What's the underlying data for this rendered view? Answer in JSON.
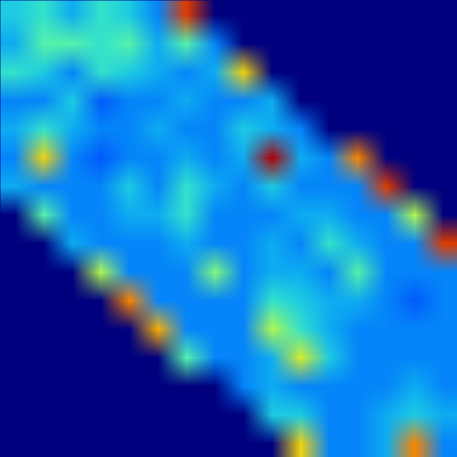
{
  "chart_data": {
    "type": "heatmap",
    "cells": [
      [
        0.4,
        0.45,
        0.35,
        0.45,
        0.4,
        0.3,
        0.9,
        0,
        0,
        0,
        0,
        0,
        0,
        0,
        0,
        0
      ],
      [
        0.35,
        0.5,
        0.5,
        0.45,
        0.5,
        0.35,
        0.5,
        0.3,
        0,
        0,
        0,
        0,
        0,
        0,
        0,
        0
      ],
      [
        0.45,
        0.4,
        0.3,
        0.45,
        0.4,
        0.35,
        0.3,
        0.35,
        0.7,
        0,
        0,
        0,
        0,
        0,
        0,
        0
      ],
      [
        0.3,
        0.3,
        0.4,
        0.25,
        0.3,
        0.3,
        0.35,
        0.3,
        0.3,
        0.35,
        0,
        0,
        0,
        0,
        0,
        0
      ],
      [
        0.35,
        0.45,
        0.35,
        0.3,
        0.3,
        0.35,
        0.3,
        0.3,
        0.4,
        0.35,
        0.3,
        0,
        0,
        0,
        0,
        0
      ],
      [
        0.3,
        0.7,
        0.3,
        0.25,
        0.3,
        0.3,
        0.35,
        0.3,
        0.35,
        1.0,
        0.35,
        0.3,
        0.8,
        0,
        0,
        0
      ],
      [
        0.35,
        0.3,
        0.3,
        0.3,
        0.4,
        0.3,
        0.45,
        0.35,
        0.3,
        0.4,
        0.3,
        0.3,
        0.3,
        0.9,
        0,
        0
      ],
      [
        0,
        0.5,
        0.3,
        0.3,
        0.35,
        0.35,
        0.45,
        0.3,
        0.3,
        0.3,
        0.35,
        0.35,
        0.3,
        0.3,
        0.6,
        0
      ],
      [
        0,
        0,
        0.35,
        0.3,
        0.3,
        0.3,
        0.35,
        0.3,
        0.3,
        0.35,
        0.3,
        0.45,
        0.35,
        0.3,
        0.3,
        0.9
      ],
      [
        0,
        0,
        0,
        0.6,
        0.3,
        0.3,
        0.3,
        0.55,
        0.3,
        0.35,
        0.35,
        0.3,
        0.5,
        0.3,
        0.3,
        0.3
      ],
      [
        0,
        0,
        0,
        0,
        0.8,
        0.3,
        0.3,
        0.3,
        0.3,
        0.45,
        0.4,
        0.35,
        0.35,
        0.3,
        0.25,
        0.3
      ],
      [
        0,
        0,
        0,
        0,
        0,
        0.75,
        0.3,
        0.3,
        0.3,
        0.6,
        0.45,
        0.35,
        0.3,
        0.3,
        0.3,
        0.3
      ],
      [
        0,
        0,
        0,
        0,
        0,
        0,
        0.5,
        0.3,
        0.3,
        0.35,
        0.65,
        0.4,
        0.3,
        0.3,
        0.3,
        0.3
      ],
      [
        0,
        0,
        0,
        0,
        0,
        0,
        0,
        0,
        0.3,
        0.35,
        0.3,
        0.3,
        0.3,
        0.3,
        0.35,
        0.3
      ],
      [
        0,
        0,
        0,
        0,
        0,
        0,
        0,
        0,
        0,
        0.4,
        0.4,
        0.3,
        0.3,
        0.35,
        0.4,
        0.35
      ],
      [
        0,
        0,
        0,
        0,
        0,
        0,
        0,
        0,
        0,
        0,
        0.7,
        0.3,
        0.3,
        0.35,
        0.8,
        0.3
      ]
    ],
    "color_range": [
      0,
      1
    ],
    "tick_labels": false
  }
}
